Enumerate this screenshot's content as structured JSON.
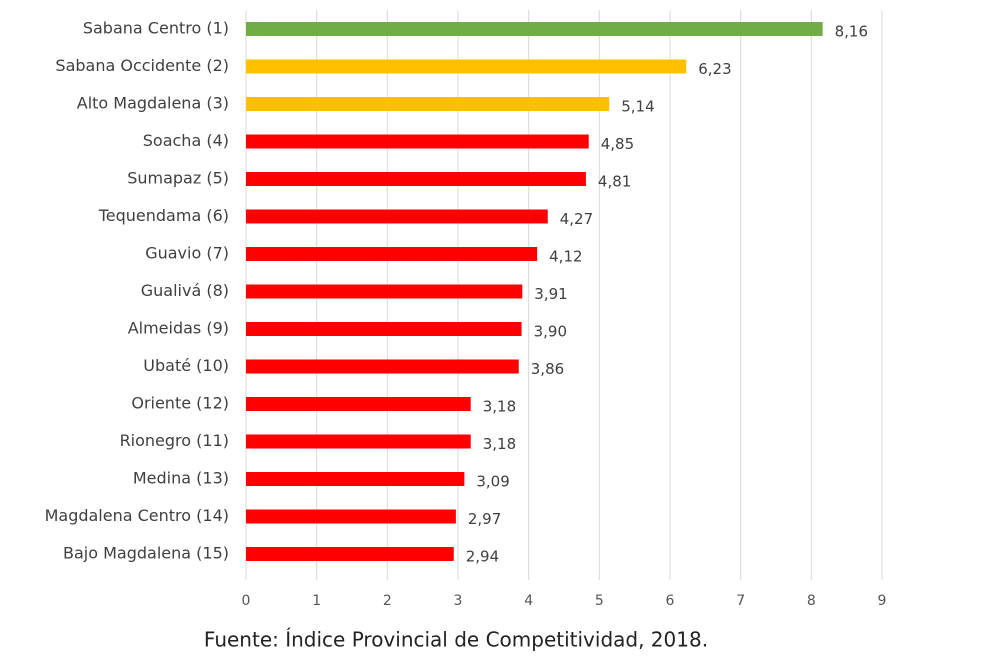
{
  "chart_data": {
    "type": "hbar",
    "categories": [
      "Sabana Centro (1)",
      "Sabana Occidente (2)",
      "Alto Magdalena (3)",
      "Soacha (4)",
      "Sumapaz (5)",
      "Tequendama (6)",
      "Guavio (7)",
      "Gualivá (8)",
      "Almeidas (9)",
      "Ubaté (10)",
      "Oriente (12)",
      "Rionegro (11)",
      "Medina (13)",
      "Magdalena Centro (14)",
      "Bajo Magdalena (15)"
    ],
    "values": [
      8.16,
      6.23,
      5.14,
      4.85,
      4.81,
      4.27,
      4.12,
      3.91,
      3.9,
      3.86,
      3.18,
      3.18,
      3.09,
      2.97,
      2.94
    ],
    "value_labels": [
      "8,16",
      "6,23",
      "5,14",
      "4,85",
      "4,81",
      "4,27",
      "4,12",
      "3,91",
      "3,90",
      "3,86",
      "3,18",
      "3,18",
      "3,09",
      "2,97",
      "2,94"
    ],
    "colors": [
      "#70ad47",
      "#ffc000",
      "#ffc000",
      "#ff0000",
      "#ff0000",
      "#ff0000",
      "#ff0000",
      "#ff0000",
      "#ff0000",
      "#ff0000",
      "#ff0000",
      "#ff0000",
      "#ff0000",
      "#ff0000",
      "#ff0000"
    ],
    "xlim": [
      0,
      9
    ],
    "xticks": [
      0,
      1,
      2,
      3,
      4,
      5,
      6,
      7,
      8,
      9
    ],
    "grid": true,
    "caption": "Fuente: Índice Provincial de Competitividad, 2018."
  }
}
